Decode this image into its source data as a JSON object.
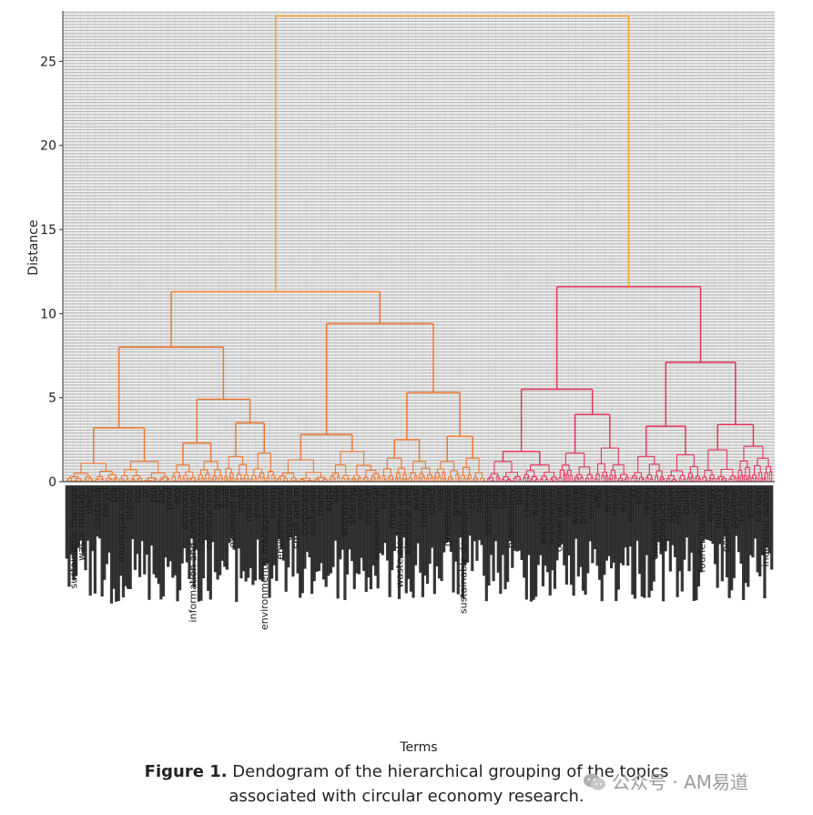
{
  "chart_data": {
    "type": "dendrogram",
    "title": "",
    "xlabel": "Terms",
    "ylabel": "Distance",
    "ylim": [
      0,
      28
    ],
    "yticks": [
      0,
      5,
      10,
      15,
      20,
      25
    ],
    "grid": true,
    "colors": {
      "root": "#f0a830",
      "cluster1": "#f07830",
      "cluster2": "#e8345a",
      "leaf_labels": "#1a1a1a",
      "grid_bg": "#e8e8e8",
      "grid_line": "#a8a8a8"
    },
    "root_height": 27.7,
    "clusters": [
      {
        "name": "",
        "height": 11.3,
        "children": [
          {
            "height": 8.0,
            "children": [
              {
                "height": 3.2,
                "children": [
                  {
                    "height": 1.1
                  },
                  {
                    "height": 1.2
                  }
                ]
              },
              {
                "height": 4.9,
                "children": [
                  {
                    "height": 2.3,
                    "children": [
                      {
                        "height": 1.0
                      },
                      {
                        "height": 1.2
                      }
                    ]
                  },
                  {
                    "height": 3.5,
                    "children": [
                      {
                        "height": 1.5
                      },
                      {
                        "height": 1.7
                      }
                    ]
                  }
                ]
              }
            ]
          },
          {
            "height": 9.4,
            "children": [
              {
                "height": 2.8,
                "children": [
                  {
                    "height": 1.3
                  },
                  {
                    "height": 1.8
                  }
                ]
              },
              {
                "height": 5.3,
                "children": [
                  {
                    "height": 2.5,
                    "children": [
                      {
                        "height": 1.4
                      },
                      {
                        "height": 1.2
                      }
                    ]
                  },
                  {
                    "height": 2.7,
                    "children": [
                      {
                        "height": 1.2
                      },
                      {
                        "height": 1.4
                      }
                    ]
                  }
                ]
              }
            ]
          }
        ]
      },
      {
        "name": "",
        "height": 11.6,
        "children": [
          {
            "height": 5.5,
            "children": [
              {
                "height": 1.8,
                "children": [
                  {
                    "height": 1.2
                  },
                  {
                    "height": 1.0
                  }
                ]
              },
              {
                "height": 4.0,
                "children": [
                  {
                    "height": 1.7
                  },
                  {
                    "height": 2.0
                  }
                ]
              }
            ]
          },
          {
            "height": 7.1,
            "children": [
              {
                "height": 3.3,
                "children": [
                  {
                    "height": 1.5
                  },
                  {
                    "height": 1.6
                  }
                ]
              },
              {
                "height": 3.4,
                "children": [
                  {
                    "height": 1.9
                  },
                  {
                    "height": 2.1
                  }
                ]
              }
            ]
          }
        ]
      }
    ],
    "leaf_labels": [
      "sustainable manage",
      "waste manage",
      "lifecy",
      "sustaina",
      "recycl",
      "pla",
      "municipal solid",
      "plastic",
      "rec",
      "pr",
      "pul",
      "soc",
      "prod",
      "eco",
      "economi",
      "information and communic",
      "constructio",
      "construction",
      "gree",
      "sust",
      "extended pr",
      "impa",
      "manag",
      "enviro",
      "environmental management",
      "enviro",
      "environmental",
      "environme",
      "small and m",
      "corporate",
      "sustainab",
      "manu",
      "supp",
      "ste",
      "entrepren",
      "sharing",
      "supply",
      "circular",
      "environmental",
      "indu",
      "material",
      "waste electrical and",
      "electrical and",
      "wast",
      "building",
      "concr",
      "cons",
      "greenhouse",
      "green",
      "sustainable development",
      "carb",
      "mate",
      "sustainab",
      "indu",
      "food",
      "bioeconomy",
      "biol",
      "chemi",
      "waste",
      "wastewater",
      "wastewater",
      "conservation",
      "waste",
      "wastew",
      "principl",
      "enviro",
      "effic",
      "envir",
      "energ",
      "envir",
      "energy",
      "eco",
      "resou",
      "environmental",
      "reproduction",
      "sustain",
      "efficien",
      "buildi",
      "circul",
      "fourier transform",
      "energy",
      "industry",
      "polyethylene",
      "polymer",
      "techno",
      "enviro",
      "carbon",
      "industrial waste"
    ]
  },
  "caption": {
    "label": "Figure 1.",
    "text_line1": " Dendogram of the hierarchical grouping of the topics",
    "text_line2": "associated with circular economy research."
  },
  "watermark": {
    "text": "公众号 · AM易道",
    "icon": "wechat-icon"
  }
}
